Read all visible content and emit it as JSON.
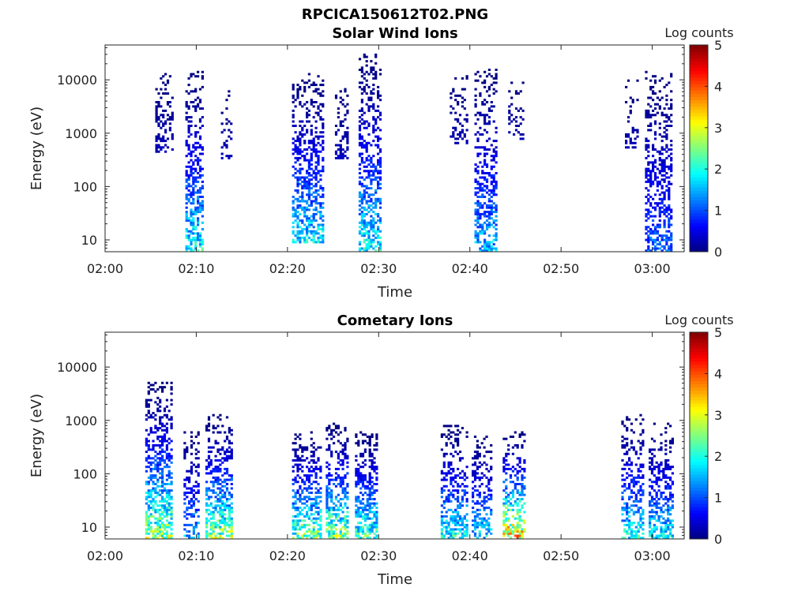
{
  "figure_title": "RPCICA150612T02.PNG",
  "chart_data": [
    {
      "type": "heatmap",
      "title": "Solar Wind Ions",
      "xlabel": "Time",
      "ylabel": "Energy (eV)",
      "x_ticks": [
        "02:00",
        "02:10",
        "02:20",
        "02:30",
        "02:40",
        "02:50",
        "03:00"
      ],
      "y_ticks": [
        "10",
        "100",
        "1000",
        "10000"
      ],
      "y_scale": "log",
      "xlim_minutes": [
        0,
        63.5
      ],
      "ylim": [
        6,
        45000
      ],
      "colorbar": {
        "label": "Log counts",
        "ticks": [
          "0",
          "1",
          "2",
          "3",
          "4",
          "5"
        ],
        "range": [
          0,
          5
        ],
        "colormap": "jet"
      },
      "bursts": [
        {
          "t0": 5.5,
          "t1": 7.5,
          "e_lo": 400,
          "e_hi": 15000,
          "peak": 0.35,
          "density": 0.35
        },
        {
          "t0": 8.8,
          "t1": 10.8,
          "e_lo": 6,
          "e_hi": 14000,
          "peak": 2.2,
          "density": 0.55
        },
        {
          "t0": 12.7,
          "t1": 13.8,
          "e_lo": 300,
          "e_hi": 6000,
          "peak": 0.35,
          "density": 0.3
        },
        {
          "t0": 20.5,
          "t1": 23.8,
          "e_lo": 8,
          "e_hi": 13000,
          "peak": 2.1,
          "density": 0.55
        },
        {
          "t0": 25.2,
          "t1": 26.7,
          "e_lo": 300,
          "e_hi": 8000,
          "peak": 0.4,
          "density": 0.35
        },
        {
          "t0": 27.8,
          "t1": 30.1,
          "e_lo": 6,
          "e_hi": 30000,
          "peak": 2.2,
          "density": 0.55
        },
        {
          "t0": 37.8,
          "t1": 39.8,
          "e_lo": 600,
          "e_hi": 12000,
          "peak": 0.35,
          "density": 0.3
        },
        {
          "t0": 40.5,
          "t1": 42.8,
          "e_lo": 6,
          "e_hi": 16000,
          "peak": 1.8,
          "density": 0.5
        },
        {
          "t0": 44.2,
          "t1": 45.8,
          "e_lo": 700,
          "e_hi": 9000,
          "peak": 0.35,
          "density": 0.35
        },
        {
          "t0": 57.0,
          "t1": 58.5,
          "e_lo": 500,
          "e_hi": 10000,
          "peak": 0.3,
          "density": 0.3
        },
        {
          "t0": 59.2,
          "t1": 62.0,
          "e_lo": 6,
          "e_hi": 14000,
          "peak": 1.3,
          "density": 0.5
        }
      ]
    },
    {
      "type": "heatmap",
      "title": "Cometary Ions",
      "xlabel": "Time",
      "ylabel": "Energy (eV)",
      "x_ticks": [
        "02:00",
        "02:10",
        "02:20",
        "02:30",
        "02:40",
        "02:50",
        "03:00"
      ],
      "y_ticks": [
        "10",
        "100",
        "1000",
        "10000"
      ],
      "y_scale": "log",
      "xlim_minutes": [
        0,
        63.5
      ],
      "ylim": [
        6,
        45000
      ],
      "colorbar": {
        "label": "Log counts",
        "ticks": [
          "0",
          "1",
          "2",
          "3",
          "4",
          "5"
        ],
        "range": [
          0,
          5
        ],
        "colormap": "jet"
      },
      "bursts": [
        {
          "t0": 4.4,
          "t1": 7.2,
          "e_lo": 6,
          "e_hi": 5000,
          "peak": 3.0,
          "density": 0.6
        },
        {
          "t0": 8.6,
          "t1": 10.2,
          "e_lo": 6,
          "e_hi": 600,
          "peak": 1.8,
          "density": 0.45
        },
        {
          "t0": 11.0,
          "t1": 13.8,
          "e_lo": 6,
          "e_hi": 1200,
          "peak": 3.0,
          "density": 0.55
        },
        {
          "t0": 20.5,
          "t1": 23.7,
          "e_lo": 6,
          "e_hi": 600,
          "peak": 2.8,
          "density": 0.6
        },
        {
          "t0": 24.2,
          "t1": 26.6,
          "e_lo": 6,
          "e_hi": 900,
          "peak": 3.0,
          "density": 0.55
        },
        {
          "t0": 27.4,
          "t1": 29.7,
          "e_lo": 6,
          "e_hi": 600,
          "peak": 2.6,
          "density": 0.6
        },
        {
          "t0": 36.8,
          "t1": 39.6,
          "e_lo": 6,
          "e_hi": 800,
          "peak": 2.3,
          "density": 0.5
        },
        {
          "t0": 40.2,
          "t1": 42.4,
          "e_lo": 6,
          "e_hi": 500,
          "peak": 2.0,
          "density": 0.5
        },
        {
          "t0": 43.6,
          "t1": 46.0,
          "e_lo": 6,
          "e_hi": 600,
          "peak": 3.9,
          "density": 0.55
        },
        {
          "t0": 56.6,
          "t1": 59.0,
          "e_lo": 6,
          "e_hi": 1200,
          "peak": 2.2,
          "density": 0.5
        },
        {
          "t0": 59.6,
          "t1": 62.2,
          "e_lo": 6,
          "e_hi": 900,
          "peak": 2.1,
          "density": 0.5
        }
      ]
    }
  ]
}
